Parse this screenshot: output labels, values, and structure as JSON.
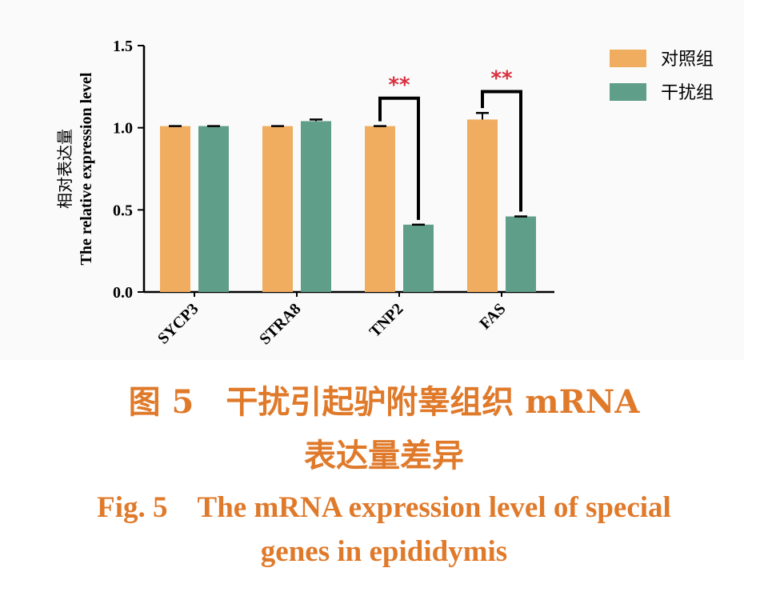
{
  "chart_data": {
    "type": "bar",
    "categories": [
      "SYCP3",
      "STRA8",
      "TNP2",
      "FAS"
    ],
    "series": [
      {
        "name": "对照组",
        "color": "#f0ad5f",
        "values": [
          1.01,
          1.01,
          1.01,
          1.05
        ],
        "errors": [
          0.0,
          0.0,
          0.0,
          0.04
        ]
      },
      {
        "name": "干扰组",
        "color": "#5f9e88",
        "values": [
          1.01,
          1.04,
          0.41,
          0.46
        ],
        "errors": [
          0.0,
          0.01,
          0.0,
          0.0
        ]
      }
    ],
    "ylabel_cn": "相对表达量",
    "ylabel_en": "The relative expression level",
    "ylim": [
      0,
      1.5
    ],
    "yticks": [
      "0.0",
      "0.5",
      "1.0",
      "1.5"
    ],
    "grid": false,
    "legend_position": "top-right",
    "significance": [
      {
        "category": "TNP2",
        "label": "**"
      },
      {
        "category": "FAS",
        "label": "**"
      }
    ],
    "significance_color": "#d92f3f"
  },
  "caption": {
    "cn_line1": "图 5　干扰引起驴附睾组织 mRNA",
    "cn_line2": "表达量差异",
    "en_line1": "Fig. 5　The mRNA expression level of special",
    "en_line2": "genes in epididymis"
  },
  "colors": {
    "caption": "#e07a2b",
    "axis": "#000000"
  }
}
